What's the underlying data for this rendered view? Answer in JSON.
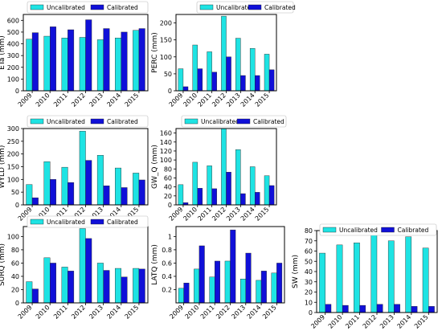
{
  "colors": {
    "uncalibrated": "#1ee3e3",
    "calibrated": "#1010d8",
    "axis": "#000000"
  },
  "chart_data": [
    {
      "type": "bar",
      "ylabel": "ETa (mm)",
      "categories": [
        "2009",
        "2010",
        "2011",
        "2012",
        "2013",
        "2014",
        "2015"
      ],
      "ylim": [
        0,
        650
      ],
      "yticks": [
        0,
        100,
        200,
        300,
        400,
        500,
        600
      ],
      "legend": "top",
      "series": [
        {
          "name": "Uncalibrated",
          "values": [
            440,
            465,
            450,
            455,
            435,
            450,
            515
          ]
        },
        {
          "name": "Calibrated",
          "values": [
            495,
            545,
            520,
            605,
            530,
            500,
            530
          ]
        }
      ]
    },
    {
      "type": "bar",
      "ylabel": "PERC (mm)",
      "categories": [
        "2009",
        "2010",
        "2011",
        "2012",
        "2013",
        "2014",
        "2015"
      ],
      "ylim": [
        0,
        225
      ],
      "yticks": [
        0,
        50,
        100,
        150,
        200
      ],
      "legend": "top",
      "series": [
        {
          "name": "Uncalibrated",
          "values": [
            65,
            135,
            115,
            220,
            155,
            125,
            108
          ]
        },
        {
          "name": "Calibrated",
          "values": [
            12,
            65,
            55,
            100,
            45,
            45,
            62
          ]
        }
      ]
    },
    {
      "type": "bar",
      "ylabel": "WYLD (mm)",
      "categories": [
        "2009",
        "2010",
        "2011",
        "2012",
        "2013",
        "2014",
        "2015"
      ],
      "ylim": [
        0,
        300
      ],
      "yticks": [
        0,
        50,
        100,
        150,
        200,
        250,
        300
      ],
      "legend": "top",
      "series": [
        {
          "name": "Uncalibrated",
          "values": [
            80,
            170,
            148,
            290,
            195,
            145,
            125
          ]
        },
        {
          "name": "Calibrated",
          "values": [
            28,
            100,
            88,
            175,
            75,
            68,
            98
          ]
        }
      ]
    },
    {
      "type": "bar",
      "ylabel": "GW_Q (mm)",
      "categories": [
        "2009",
        "2010",
        "2011",
        "2012",
        "2013",
        "2014",
        "2015"
      ],
      "ylim": [
        0,
        170
      ],
      "yticks": [
        0,
        20,
        40,
        60,
        80,
        100,
        120,
        140,
        160
      ],
      "legend": "top",
      "series": [
        {
          "name": "Uncalibrated",
          "values": [
            45,
            95,
            87,
            170,
            123,
            85,
            65
          ]
        },
        {
          "name": "Calibrated",
          "values": [
            5,
            37,
            36,
            73,
            25,
            28,
            43
          ]
        }
      ]
    },
    {
      "type": "bar",
      "ylabel": "SURQ (mm)",
      "categories": [
        "2009",
        "2010",
        "2011",
        "2012",
        "2013",
        "2014",
        "2015"
      ],
      "ylim": [
        0,
        115
      ],
      "yticks": [
        0,
        20,
        40,
        60,
        80,
        100
      ],
      "legend": "top",
      "series": [
        {
          "name": "Uncalibrated",
          "values": [
            32,
            68,
            54,
            112,
            60,
            52,
            52
          ]
        },
        {
          "name": "Calibrated",
          "values": [
            21,
            60,
            48,
            97,
            49,
            39,
            51
          ]
        }
      ]
    },
    {
      "type": "bar",
      "ylabel": "LATQ (mm)",
      "categories": [
        "2009",
        "2010",
        "2011",
        "2012",
        "2013",
        "2014",
        "2015"
      ],
      "ylim": [
        0,
        1.15
      ],
      "yticks": [
        0.2,
        0.4,
        0.6,
        0.8,
        1.0
      ],
      "legend": "none",
      "series": [
        {
          "name": "",
          "values": [
            0.22,
            0.51,
            0.39,
            0.63,
            0.36,
            0.34,
            0.45
          ]
        },
        {
          "name": "",
          "values": [
            0.3,
            0.86,
            0.63,
            1.1,
            0.75,
            0.48,
            0.6
          ]
        }
      ]
    },
    {
      "type": "bar",
      "ylabel": "SW (mm)",
      "categories": [
        "2009",
        "2010",
        "2011",
        "2012",
        "2013",
        "2014",
        "2015"
      ],
      "ylim": [
        0,
        80
      ],
      "yticks": [
        0,
        10,
        20,
        30,
        40,
        50,
        60,
        70,
        80
      ],
      "legend": "top",
      "series": [
        {
          "name": "Uncalibrated",
          "values": [
            58,
            66,
            68,
            78,
            70,
            74,
            63
          ]
        },
        {
          "name": "Calibrated",
          "values": [
            8,
            7,
            7,
            8,
            8,
            6,
            6
          ]
        }
      ]
    }
  ]
}
